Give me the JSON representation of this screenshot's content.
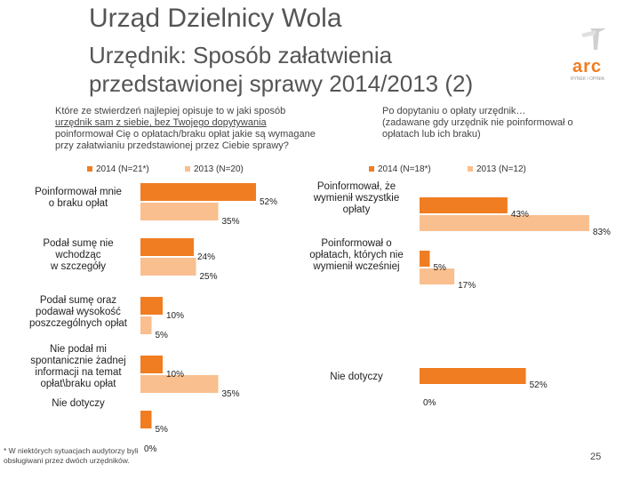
{
  "header": {
    "title": "Urząd Dzielnicy Wola",
    "subtitle_line1": "Urzędnik: Sposób załatwienia",
    "subtitle_line2": "przedstawionej sprawy 2014/2013 (2)",
    "logo_text": "arc",
    "logo_subtext": "RYNEK i OPINIA"
  },
  "colors": {
    "series2014": "#f07d22",
    "series2013": "#f9bf8f",
    "accent": "#f07d22"
  },
  "chart_data": [
    {
      "type": "bar",
      "orientation": "horizontal",
      "question_line1": "Które ze stwierdzeń najlepiej opisuje to w jaki sposób",
      "question_line2": "urzędnik sam z siebie, bez Twojego dopytywania",
      "question_line3": "poinformował Cię o opłatach/braku opłat jakie są wymagane",
      "question_line4": "przy załatwianiu  przedstawionej przez Ciebie sprawy?",
      "legend": [
        "2014 (N=21*)",
        "2013 (N=20)"
      ],
      "categories": [
        [
          "Poinformował mnie",
          "o braku opłat"
        ],
        [
          "Podał sumę nie",
          "wchodząc",
          "w szczegóły"
        ],
        [
          "Podał sumę oraz",
          "podawał wysokość",
          "poszczególnych opłat"
        ],
        [
          "Nie podał mi",
          "spontanicznie żadnej",
          "informacji na temat",
          "opłat\\braku opłat"
        ],
        [
          "Nie dotyczy"
        ]
      ],
      "series": [
        {
          "name": "2014 (N=21*)",
          "values": [
            52,
            24,
            10,
            10,
            5
          ],
          "labels": [
            "52%",
            "24%",
            "10%",
            "10%",
            "5%"
          ]
        },
        {
          "name": "2013 (N=20)",
          "values": [
            35,
            25,
            5,
            35,
            0
          ],
          "labels": [
            "35%",
            "25%",
            "5%",
            "35%",
            "0%"
          ]
        }
      ],
      "xlim": [
        0,
        100
      ]
    },
    {
      "type": "bar",
      "orientation": "horizontal",
      "question_line1": "Po dopytaniu o opłaty urzędnik…",
      "question_line2": "(zadawane gdy urzędnik nie poinformował o",
      "question_line3": "opłatach lub ich braku)",
      "legend": [
        "2014 (N=18*)",
        "2013 (N=12)"
      ],
      "categories": [
        [
          "Poinformował, że",
          "wymienił wszystkie",
          "opłaty"
        ],
        [
          "Poinformował o",
          "opłatach, których nie",
          "wymienił wcześniej"
        ],
        [
          "Nie dotyczy"
        ]
      ],
      "series": [
        {
          "name": "2014 (N=18*)",
          "values": [
            43,
            5,
            52
          ],
          "labels": [
            "43%",
            "5%",
            "52%"
          ]
        },
        {
          "name": "2013 (N=12)",
          "values": [
            83,
            17,
            0
          ],
          "labels": [
            "83%",
            "17%",
            "0%"
          ]
        }
      ],
      "xlim": [
        0,
        100
      ]
    }
  ],
  "footnote_line1": "* W niektórych sytuacjach audytorzy byli",
  "footnote_line2": "obsługiwani przez dwóch urzędników.",
  "page_number": "25"
}
